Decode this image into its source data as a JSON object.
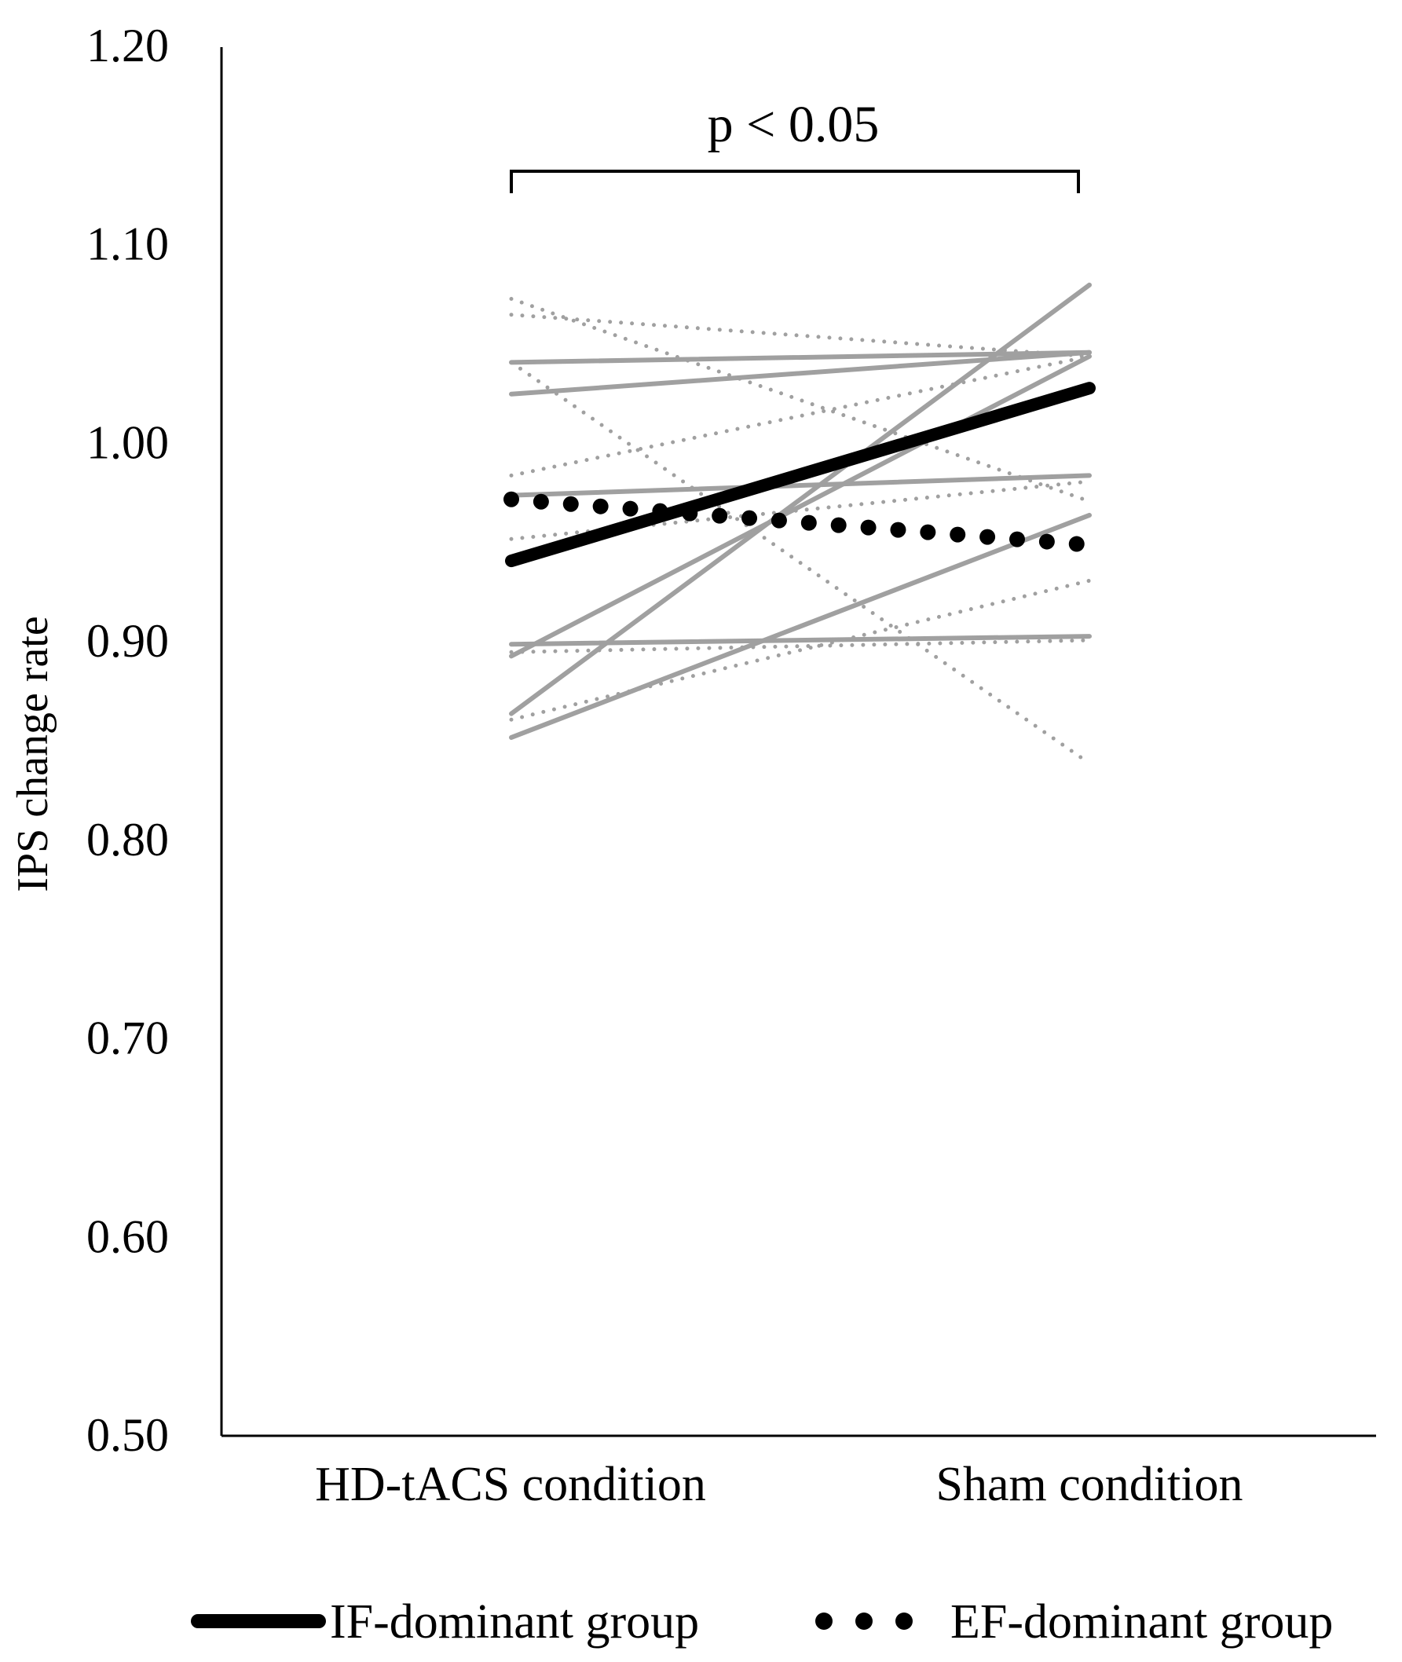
{
  "chart_data": {
    "type": "line",
    "title": "",
    "xlabel": "",
    "ylabel": "IPS change rate",
    "categories": [
      "HD-tACS condition",
      "Sham condition"
    ],
    "ylim": [
      0.5,
      1.2
    ],
    "yticks": [
      "0.50",
      "0.60",
      "0.70",
      "0.80",
      "0.90",
      "1.00",
      "1.10",
      "1.20"
    ],
    "grid": false,
    "annotation": "p < 0.05",
    "legend": {
      "position": "bottom",
      "entries": [
        {
          "name": "IF-dominant group",
          "style": "solid"
        },
        {
          "name": "EF-dominant group",
          "style": "dotted"
        }
      ]
    },
    "colors": {
      "group_mean": "#000000",
      "individual": "#a0a0a0"
    },
    "means": [
      {
        "name": "IF-dominant group",
        "style": "solid",
        "values": [
          0.94,
          1.027
        ]
      },
      {
        "name": "EF-dominant group",
        "style": "dotted",
        "values": [
          0.971,
          0.948
        ]
      }
    ],
    "individuals_if": [
      [
        1.04,
        1.045
      ],
      [
        1.024,
        1.045
      ],
      [
        0.973,
        0.983
      ],
      [
        0.892,
        1.043
      ],
      [
        0.863,
        1.079
      ],
      [
        0.898,
        0.902
      ],
      [
        0.851,
        0.963
      ]
    ],
    "individuals_ef": [
      [
        1.072,
        0.97
      ],
      [
        1.064,
        1.043
      ],
      [
        1.04,
        0.838
      ],
      [
        0.983,
        1.043
      ],
      [
        0.951,
        0.98
      ],
      [
        0.894,
        0.9
      ],
      [
        0.86,
        0.93
      ]
    ]
  }
}
